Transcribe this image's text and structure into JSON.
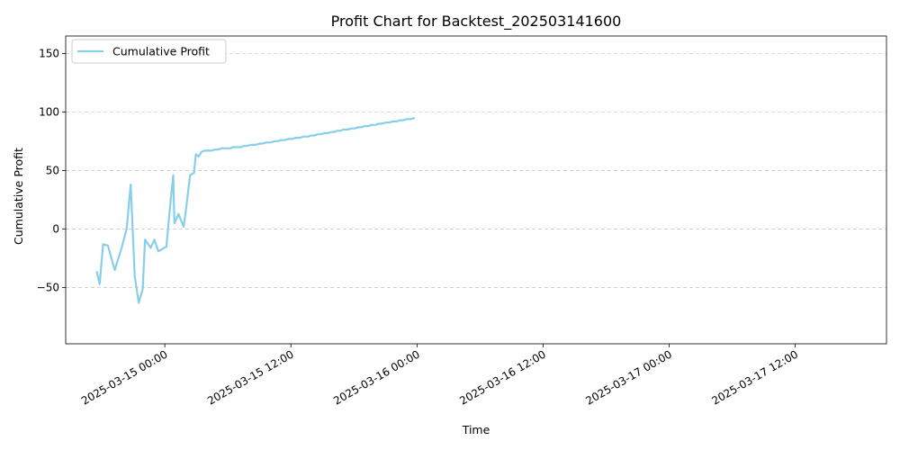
{
  "chart_data": {
    "type": "line",
    "title": "Profit Chart for Backtest_202503141600",
    "xlabel": "Time",
    "ylabel": "Cumulative Profit",
    "xlim": [
      "2025-03-14 14:34",
      "2025-03-17 20:41"
    ],
    "ylim": [
      -98,
      165
    ],
    "x_ticks": [
      "2025-03-15 00:00",
      "2025-03-15 12:00",
      "2025-03-16 00:00",
      "2025-03-16 12:00",
      "2025-03-17 00:00",
      "2025-03-17 12:00"
    ],
    "y_ticks": [
      -50,
      0,
      50,
      100,
      150
    ],
    "grid": "y-dashed",
    "legend_position": "upper-left",
    "line_color": "#87ceeb",
    "series": [
      {
        "name": "Cumulative Profit",
        "x": [
          "2025-03-14 17:31",
          "2025-03-14 17:48",
          "2025-03-14 18:08",
          "2025-03-14 18:35",
          "2025-03-14 19:14",
          "2025-03-14 19:53",
          "2025-03-14 20:22",
          "2025-03-14 20:45",
          "2025-03-14 21:08",
          "2025-03-14 21:31",
          "2025-03-14 21:54",
          "2025-03-14 22:07",
          "2025-03-14 22:39",
          "2025-03-14 23:00",
          "2025-03-14 23:23",
          "2025-03-14 23:46",
          "2025-03-15 00:09",
          "2025-03-15 00:29",
          "2025-03-15 00:48",
          "2025-03-15 00:55",
          "2025-03-15 01:18",
          "2025-03-15 01:48",
          "2025-03-15 02:01",
          "2025-03-15 02:24",
          "2025-03-15 02:47",
          "2025-03-15 02:57",
          "2025-03-15 03:13",
          "2025-03-15 03:30",
          "2025-03-15 03:46",
          "2025-03-15 04:06",
          "2025-03-15 04:28",
          "2025-03-15 04:44",
          "2025-03-15 05:03",
          "2025-03-15 05:26",
          "2025-03-15 05:56",
          "2025-03-15 06:13",
          "2025-03-15 06:29",
          "2025-03-15 06:49",
          "2025-03-15 07:15",
          "2025-03-15 07:31",
          "2025-03-15 07:45",
          "2025-03-15 08:14",
          "2025-03-15 08:38",
          "2025-03-15 09:02",
          "2025-03-15 09:17",
          "2025-03-15 09:40",
          "2025-03-15 10:03",
          "2025-03-15 10:26",
          "2025-03-15 10:43",
          "2025-03-15 11:03",
          "2025-03-15 11:23",
          "2025-03-15 11:45",
          "2025-03-15 12:05",
          "2025-03-15 12:28",
          "2025-03-15 12:52",
          "2025-03-15 13:11",
          "2025-03-15 13:37",
          "2025-03-15 13:58",
          "2025-03-15 14:15",
          "2025-03-15 14:32",
          "2025-03-15 14:52",
          "2025-03-15 15:10",
          "2025-03-15 15:30",
          "2025-03-15 15:53",
          "2025-03-15 16:10",
          "2025-03-15 16:23",
          "2025-03-15 16:41",
          "2025-03-15 17:01",
          "2025-03-15 17:21",
          "2025-03-15 17:47",
          "2025-03-15 18:04",
          "2025-03-15 18:25",
          "2025-03-15 18:42",
          "2025-03-15 19:03",
          "2025-03-15 19:24",
          "2025-03-15 19:39",
          "2025-03-15 20:04",
          "2025-03-15 20:17",
          "2025-03-15 20:35",
          "2025-03-15 21:03",
          "2025-03-15 21:21",
          "2025-03-15 21:41",
          "2025-03-15 22:05",
          "2025-03-15 22:23",
          "2025-03-15 22:43",
          "2025-03-15 23:02",
          "2025-03-15 23:24",
          "2025-03-15 23:47"
        ],
        "values": [
          -36,
          -47,
          -13,
          -14,
          -35,
          -16,
          0,
          38,
          -40,
          -63,
          -51,
          -9,
          -16,
          -9,
          -19,
          -17,
          -15,
          18,
          46,
          5,
          13,
          2,
          17,
          46,
          48,
          64,
          62,
          66,
          67,
          67,
          67,
          68,
          68,
          69,
          69,
          69,
          70,
          70,
          70,
          71,
          71,
          72,
          72,
          73,
          73,
          74,
          74,
          75,
          75,
          76,
          76,
          77,
          77,
          78,
          78,
          79,
          79,
          80,
          80,
          81,
          81,
          82,
          82,
          83,
          83,
          84,
          84,
          85,
          85,
          86,
          86,
          87,
          87,
          88,
          88,
          89,
          89,
          90,
          90,
          91,
          91,
          92,
          92,
          93,
          93,
          94,
          94,
          95
        ]
      }
    ]
  }
}
